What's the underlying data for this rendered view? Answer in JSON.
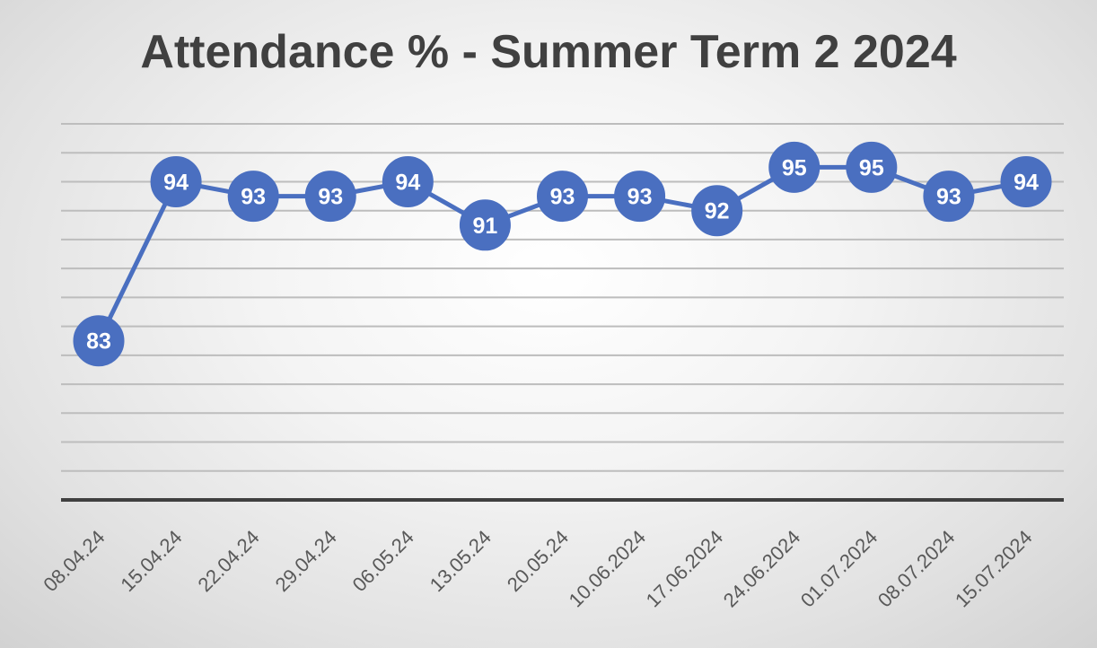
{
  "chart_data": {
    "type": "line",
    "title": "Attendance % - Summer Term 2 2024",
    "categories": [
      "08.04.24",
      "15.04.24",
      "22.04.24",
      "29.04.24",
      "06.05.24",
      "13.05.24",
      "20.05.24",
      "10.06.2024",
      "17.06.2024",
      "24.06.2024",
      "01.07.2024",
      "08.07.2024",
      "15.07.2024"
    ],
    "series": [
      {
        "values": [
          83,
          94,
          93,
          93,
          94,
          91,
          93,
          93,
          92,
          95,
          95,
          93,
          94
        ],
        "color": "#4a6fc0"
      }
    ],
    "ylim": [
      72,
      98
    ],
    "y_gridline_step": 2,
    "grid": true,
    "legend": "none",
    "data_labels": true
  }
}
